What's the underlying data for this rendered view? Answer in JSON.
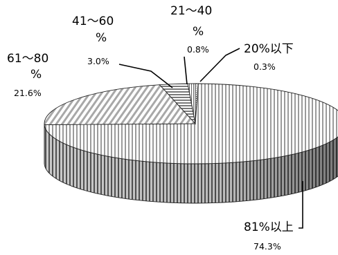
{
  "chart_data": {
    "type": "pie",
    "title": "",
    "legend": "none",
    "slices": [
      {
        "label": "20%以下",
        "label_lines": [
          "20%以下"
        ],
        "value": 0.3,
        "value_label": "0.3%"
      },
      {
        "label": "81%以上",
        "label_lines": [
          "81%以上"
        ],
        "value": 74.3,
        "value_label": "74.3%"
      },
      {
        "label": "61〜80%",
        "label_lines": [
          "61〜80",
          "%"
        ],
        "value": 21.6,
        "value_label": "21.6%"
      },
      {
        "label": "41〜60%",
        "label_lines": [
          "41〜60",
          "%"
        ],
        "value": 3.0,
        "value_label": "3.0%"
      },
      {
        "label": "21〜40%",
        "label_lines": [
          "21〜40",
          "%"
        ],
        "value": 0.8,
        "value_label": "0.8%"
      }
    ]
  }
}
